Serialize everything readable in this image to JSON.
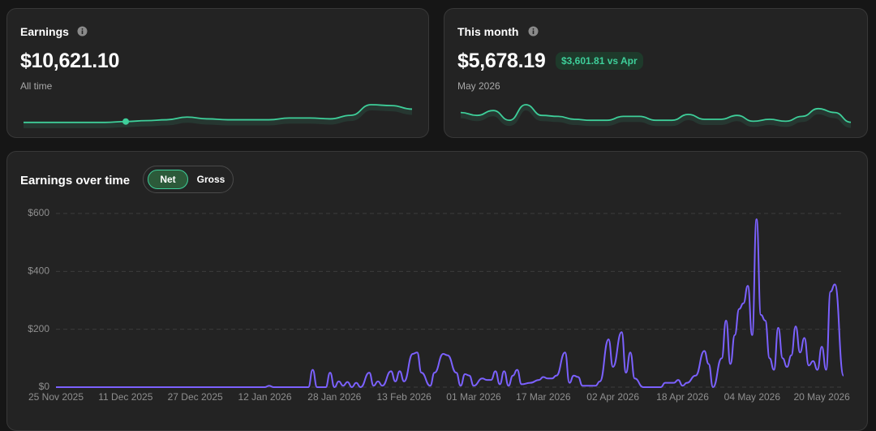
{
  "cards": [
    {
      "title": "Earnings",
      "value": "$10,621.10",
      "subtitle": "All time",
      "sparkline": {
        "type": "line",
        "color": "#3ecf9a",
        "highlight_index": 5,
        "values": [
          2,
          2,
          2,
          2,
          2,
          3,
          4,
          5,
          8,
          6,
          5,
          5,
          5,
          7,
          7,
          6,
          10,
          22,
          21,
          17
        ]
      }
    },
    {
      "title": "This month",
      "value": "$5,678.19",
      "badge": "$3,601.81 vs Apr",
      "subtitle": "May 2026",
      "sparkline": {
        "type": "line",
        "color": "#3ecf9a",
        "values": [
          12,
          9,
          14,
          4,
          20,
          9,
          8,
          5,
          4,
          4,
          8,
          8,
          4,
          4,
          10,
          5,
          5,
          9,
          3,
          5,
          3,
          8,
          16,
          12,
          2
        ]
      }
    }
  ],
  "chart_data": {
    "type": "line",
    "title": "Earnings over time",
    "toggle": [
      "Net",
      "Gross"
    ],
    "x": [
      "2025-11-25",
      "2026-01-12",
      "2026-01-13",
      "2026-01-14",
      "2026-01-22",
      "2026-01-23",
      "2026-01-24",
      "2026-01-26",
      "2026-01-27",
      "2026-01-28",
      "2026-01-29",
      "2026-01-30",
      "2026-01-31",
      "2026-02-01",
      "2026-02-02",
      "2026-02-03",
      "2026-02-05",
      "2026-02-06",
      "2026-02-07",
      "2026-02-08",
      "2026-02-10",
      "2026-02-11",
      "2026-02-12",
      "2026-02-13",
      "2026-02-15",
      "2026-02-16",
      "2026-02-17",
      "2026-02-19",
      "2026-02-20",
      "2026-02-22",
      "2026-02-23",
      "2026-02-25",
      "2026-02-26",
      "2026-02-27",
      "2026-02-28",
      "2026-03-01",
      "2026-03-03",
      "2026-03-04",
      "2026-03-05",
      "2026-03-06",
      "2026-03-07",
      "2026-03-08",
      "2026-03-09",
      "2026-03-10",
      "2026-03-11",
      "2026-03-12",
      "2026-03-14",
      "2026-03-16",
      "2026-03-17",
      "2026-03-18",
      "2026-03-19",
      "2026-03-20",
      "2026-03-22",
      "2026-03-23",
      "2026-03-24",
      "2026-03-25",
      "2026-03-26",
      "2026-03-29",
      "2026-03-30",
      "2026-04-01",
      "2026-04-02",
      "2026-04-04",
      "2026-04-05",
      "2026-04-06",
      "2026-04-07",
      "2026-04-09",
      "2026-04-13",
      "2026-04-14",
      "2026-04-16",
      "2026-04-17",
      "2026-04-18",
      "2026-04-19",
      "2026-04-21",
      "2026-04-23",
      "2026-04-24",
      "2026-04-25",
      "2026-04-27",
      "2026-04-28",
      "2026-04-29",
      "2026-04-30",
      "2026-05-01",
      "2026-05-02",
      "2026-05-03",
      "2026-05-04",
      "2026-05-05",
      "2026-05-06",
      "2026-05-07",
      "2026-05-08",
      "2026-05-09",
      "2026-05-10",
      "2026-05-11",
      "2026-05-12",
      "2026-05-13",
      "2026-05-14",
      "2026-05-15",
      "2026-05-16",
      "2026-05-17",
      "2026-05-18",
      "2026-05-19",
      "2026-05-20",
      "2026-05-21",
      "2026-05-22",
      "2026-05-23",
      "2026-05-25"
    ],
    "series": [
      {
        "color": "#7b61ff",
        "values": [
          0,
          0,
          5,
          0,
          0,
          60,
          0,
          0,
          50,
          0,
          20,
          5,
          18,
          0,
          15,
          0,
          50,
          5,
          20,
          5,
          55,
          20,
          55,
          20,
          115,
          120,
          50,
          5,
          50,
          115,
          110,
          50,
          5,
          45,
          40,
          5,
          30,
          25,
          25,
          55,
          10,
          55,
          5,
          40,
          60,
          10,
          15,
          25,
          35,
          30,
          30,
          40,
          120,
          15,
          40,
          35,
          5,
          5,
          20,
          165,
          70,
          190,
          50,
          120,
          30,
          0,
          0,
          15,
          15,
          25,
          5,
          15,
          40,
          125,
          80,
          0,
          100,
          230,
          80,
          180,
          270,
          290,
          350,
          180,
          580,
          250,
          230,
          100,
          60,
          205,
          100,
          70,
          110,
          210,
          120,
          170,
          75,
          90,
          60,
          140,
          60,
          330,
          355,
          40
        ]
      }
    ],
    "xlim": [
      "2025-11-25",
      "2026-05-25"
    ],
    "xticks": [
      {
        "value": "2025-11-25",
        "label": "25 Nov 2025"
      },
      {
        "value": "2025-12-11",
        "label": "11 Dec 2025"
      },
      {
        "value": "2025-12-27",
        "label": "27 Dec 2025"
      },
      {
        "value": "2026-01-12",
        "label": "12 Jan 2026"
      },
      {
        "value": "2026-01-28",
        "label": "28 Jan 2026"
      },
      {
        "value": "2026-02-13",
        "label": "13 Feb 2026"
      },
      {
        "value": "2026-03-01",
        "label": "01 Mar 2026"
      },
      {
        "value": "2026-03-17",
        "label": "17 Mar 2026"
      },
      {
        "value": "2026-04-02",
        "label": "02 Apr 2026"
      },
      {
        "value": "2026-04-18",
        "label": "18 Apr 2026"
      },
      {
        "value": "2026-05-04",
        "label": "04 May 2026"
      },
      {
        "value": "2026-05-20",
        "label": "20 May 2026"
      }
    ],
    "ylim": [
      0,
      600
    ],
    "yticks": [
      {
        "value": 0,
        "label": "$0"
      },
      {
        "value": 200,
        "label": "$200"
      },
      {
        "value": 400,
        "label": "$400"
      },
      {
        "value": 600,
        "label": "$600"
      }
    ],
    "grid": true
  }
}
